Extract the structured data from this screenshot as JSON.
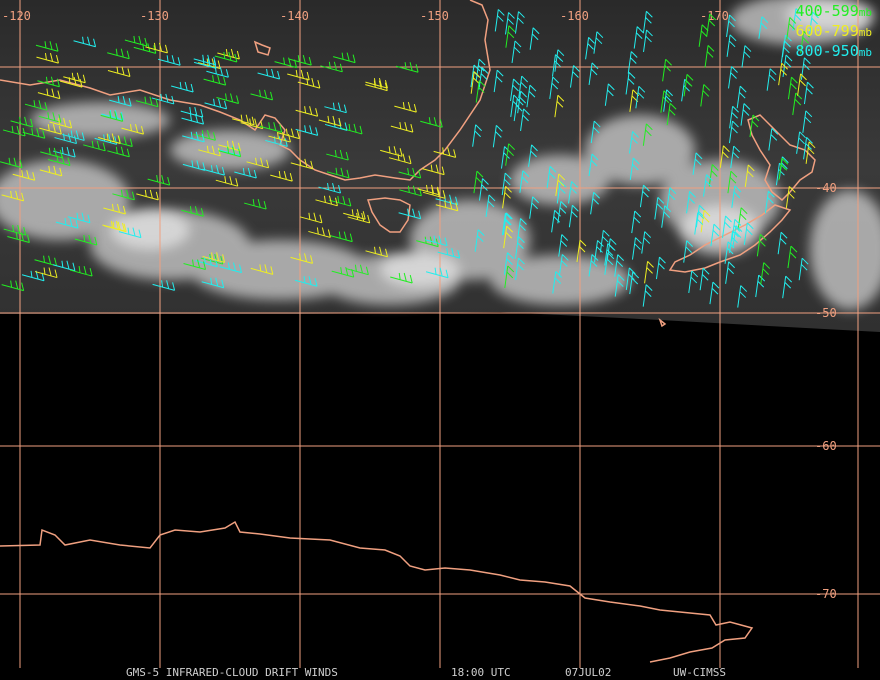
{
  "legend": [
    {
      "range": "400-599",
      "unit": "mb",
      "color": "#22ee22"
    },
    {
      "range": "600-799",
      "unit": "mb",
      "color": "#eeee22"
    },
    {
      "range": "800-950",
      "unit": "mb",
      "color": "#22eeee"
    }
  ],
  "longitude_labels": [
    "-120",
    "-130",
    "-140",
    "-150",
    "-160",
    "-170"
  ],
  "latitude_labels": [
    "-40",
    "-50",
    "-60",
    "-70"
  ],
  "footer": {
    "product": "GMS-5 INFRARED-CLOUD DRIFT WINDS",
    "time": "18:00 UTC",
    "date": "07JUL02",
    "source": "UW-CIMSS"
  },
  "colors": {
    "grid": "#f0a080",
    "coast": "#f0a080",
    "background": "#000000"
  }
}
